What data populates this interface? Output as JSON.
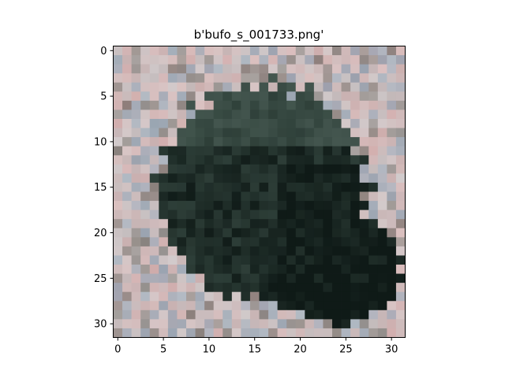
{
  "figure": {
    "title": "b'bufo_s_001733.png'"
  },
  "axes": {
    "y_ticks": [
      "0",
      "5",
      "10",
      "15",
      "20",
      "25",
      "30"
    ],
    "x_ticks": [
      "0",
      "5",
      "10",
      "15",
      "20",
      "25",
      "30"
    ]
  },
  "image": {
    "resolution": "32x32",
    "subject": "toad",
    "palette": {
      "bg": "#ffffff",
      "frame": "#000000",
      "toad_dark": "#0f1a17",
      "toad_mid": "#34463f",
      "toad_light": "#5b6e66",
      "ground_light": "#c9c2c3",
      "ground_pink": "#d9b3b2",
      "ground_blue": "#8fa4b6"
    }
  }
}
